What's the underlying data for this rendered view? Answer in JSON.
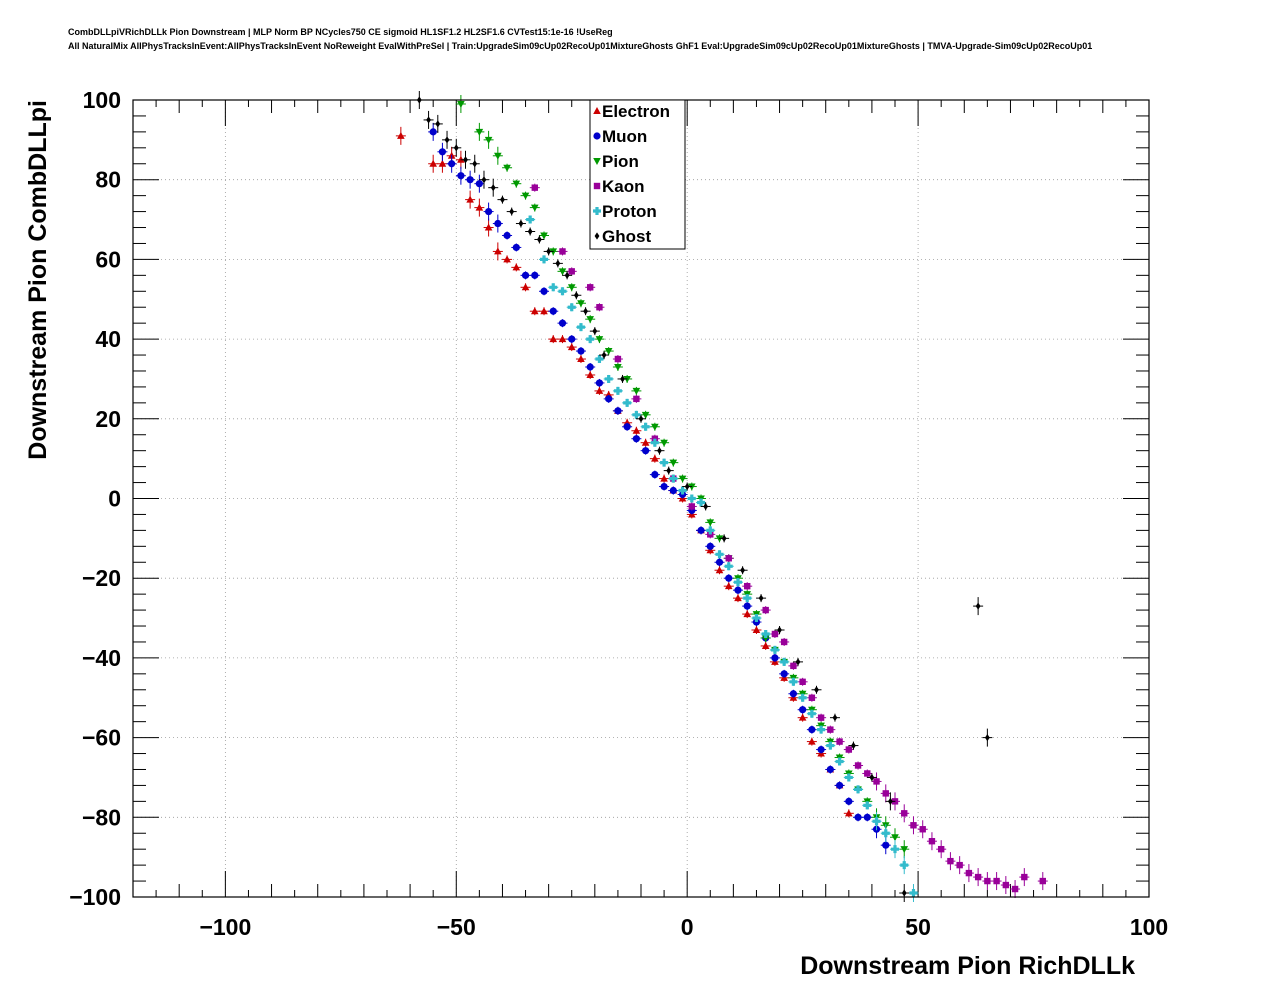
{
  "header": {
    "title_line1": "CombDLLpiVRichDLLk Pion Downstream | MLP Norm BP NCycles750 CE sigmoid HL1SF1.2 HL2SF1.6 CVTest15:1e-16 !UseReg",
    "title_line2": "All NaturalMix AllPhysTracksInEvent:AllPhysTracksInEvent NoReweight EvalWithPreSel | Train:UpgradeSim09cUp02RecoUp01MixtureGhosts GhF1 Eval:UpgradeSim09cUp02RecoUp01MixtureGhosts | TMVA-Upgrade-Sim09cUp02RecoUp01"
  },
  "chart_data": {
    "type": "scatter",
    "xlabel": "Downstream Pion RichDLLk",
    "ylabel": "Downstream Pion CombDLLpi",
    "xlim": [
      -120,
      100
    ],
    "ylim": [
      -100,
      100
    ],
    "xticks": [
      -100,
      -50,
      0,
      50,
      100
    ],
    "yticks": [
      -100,
      -80,
      -60,
      -40,
      -20,
      0,
      20,
      40,
      60,
      80,
      100
    ],
    "xtick_labels": [
      "−100",
      "−50",
      "0",
      "50",
      "100"
    ],
    "ytick_labels": [
      "−100",
      "−80",
      "−60",
      "−40",
      "−20",
      "0",
      "20",
      "40",
      "60",
      "80",
      "100"
    ],
    "grid": true,
    "legend_position": "top-center",
    "series": [
      {
        "name": "Electron",
        "color": "#cc0000",
        "marker": "triangle-up",
        "x": [
          -62,
          -55,
          -53,
          -51,
          -49,
          -47,
          -45,
          -43,
          -41,
          -39,
          -37,
          -35,
          -33,
          -31,
          -29,
          -27,
          -25,
          -23,
          -21,
          -19,
          -17,
          -15,
          -13,
          -11,
          -9,
          -7,
          -5,
          -3,
          -1,
          1,
          3,
          5,
          7,
          9,
          11,
          13,
          15,
          17,
          19,
          21,
          23,
          25,
          27,
          29,
          31,
          33,
          35
        ],
        "y": [
          91,
          84,
          84,
          86,
          85,
          75,
          73,
          68,
          62,
          60,
          58,
          53,
          47,
          47,
          40,
          40,
          38,
          35,
          31,
          27,
          26,
          22,
          19,
          17,
          14,
          10,
          5,
          2,
          0,
          -4,
          -8,
          -13,
          -18,
          -22,
          -25,
          -29,
          -33,
          -37,
          -41,
          -45,
          -50,
          -55,
          -61,
          -64,
          -68,
          -72,
          -79
        ]
      },
      {
        "name": "Muon",
        "color": "#0000cc",
        "marker": "circle",
        "x": [
          -55,
          -53,
          -51,
          -49,
          -47,
          -45,
          -43,
          -41,
          -39,
          -37,
          -35,
          -33,
          -31,
          -29,
          -27,
          -25,
          -23,
          -21,
          -19,
          -17,
          -15,
          -13,
          -11,
          -9,
          -7,
          -5,
          -3,
          -1,
          1,
          3,
          5,
          7,
          9,
          11,
          13,
          15,
          17,
          19,
          21,
          23,
          25,
          27,
          29,
          31,
          33,
          35,
          37,
          39,
          41,
          43
        ],
        "y": [
          92,
          87,
          84,
          81,
          80,
          79,
          72,
          69,
          66,
          63,
          56,
          56,
          52,
          47,
          44,
          40,
          37,
          33,
          29,
          25,
          22,
          18,
          15,
          12,
          6,
          3,
          2,
          1,
          -3,
          -8,
          -12,
          -16,
          -20,
          -23,
          -27,
          -31,
          -35,
          -40,
          -44,
          -49,
          -53,
          -58,
          -63,
          -68,
          -72,
          -76,
          -80,
          -80,
          -83,
          -87
        ]
      },
      {
        "name": "Pion",
        "color": "#009900",
        "marker": "triangle-down",
        "x": [
          -49,
          -45,
          -43,
          -41,
          -39,
          -37,
          -35,
          -33,
          -31,
          -29,
          -27,
          -25,
          -23,
          -21,
          -19,
          -17,
          -15,
          -13,
          -11,
          -9,
          -7,
          -5,
          -3,
          -1,
          1,
          3,
          5,
          7,
          9,
          11,
          13,
          15,
          17,
          19,
          21,
          23,
          25,
          27,
          29,
          31,
          33,
          35,
          37,
          39,
          41,
          43,
          45,
          47
        ],
        "y": [
          99,
          92,
          90,
          86,
          83,
          79,
          76,
          73,
          66,
          62,
          57,
          53,
          49,
          45,
          40,
          37,
          33,
          30,
          27,
          21,
          18,
          14,
          9,
          5,
          3,
          0,
          -6,
          -10,
          -15,
          -20,
          -24,
          -29,
          -35,
          -38,
          -41,
          -45,
          -49,
          -53,
          -57,
          -61,
          -65,
          -69,
          -73,
          -76,
          -80,
          -82,
          -85,
          -88
        ]
      },
      {
        "name": "Kaon",
        "color": "#990099",
        "marker": "square",
        "x": [
          -33,
          -27,
          -25,
          -21,
          -19,
          -15,
          -11,
          -7,
          -3,
          1,
          5,
          9,
          13,
          17,
          19,
          21,
          23,
          25,
          27,
          29,
          31,
          33,
          35,
          37,
          39,
          41,
          43,
          45,
          47,
          49,
          51,
          53,
          55,
          57,
          59,
          61,
          63,
          65,
          67,
          69,
          71,
          73,
          77
        ],
        "y": [
          78,
          62,
          57,
          53,
          48,
          35,
          25,
          15,
          5,
          -2,
          -9,
          -15,
          -22,
          -28,
          -34,
          -36,
          -42,
          -46,
          -50,
          -55,
          -58,
          -61,
          -63,
          -67,
          -69,
          -71,
          -74,
          -76,
          -79,
          -82,
          -83,
          -86,
          -88,
          -91,
          -92,
          -94,
          -95,
          -96,
          -96,
          -97,
          -98,
          -95,
          -96
        ]
      },
      {
        "name": "Proton",
        "color": "#33bbcc",
        "marker": "cross",
        "x": [
          -34,
          -31,
          -29,
          -27,
          -25,
          -23,
          -21,
          -19,
          -17,
          -15,
          -13,
          -11,
          -9,
          -7,
          -5,
          -3,
          -1,
          1,
          3,
          5,
          7,
          9,
          11,
          13,
          15,
          17,
          19,
          21,
          23,
          25,
          27,
          29,
          31,
          33,
          35,
          37,
          39,
          41,
          43,
          45,
          47,
          49
        ],
        "y": [
          70,
          60,
          53,
          52,
          48,
          43,
          40,
          35,
          30,
          27,
          24,
          21,
          18,
          14,
          9,
          5,
          2,
          0,
          -1,
          -8,
          -14,
          -17,
          -21,
          -25,
          -30,
          -34,
          -38,
          -41,
          -46,
          -50,
          -54,
          -58,
          -62,
          -66,
          -70,
          -73,
          -77,
          -81,
          -84,
          -88,
          -92,
          -99
        ]
      },
      {
        "name": "Ghost",
        "color": "#000000",
        "marker": "diamond",
        "x": [
          -58,
          -56,
          -54,
          -52,
          -50,
          -48,
          -46,
          -44,
          -42,
          -40,
          -38,
          -36,
          -34,
          -32,
          -30,
          -28,
          -26,
          -24,
          -22,
          -20,
          -18,
          -14,
          -10,
          -6,
          -4,
          0,
          4,
          8,
          12,
          16,
          20,
          24,
          28,
          32,
          36,
          40,
          44,
          47,
          63,
          65
        ],
        "y": [
          100,
          95,
          94,
          90,
          88,
          85,
          84,
          80,
          78,
          75,
          72,
          69,
          67,
          65,
          62,
          59,
          56,
          51,
          47,
          42,
          36,
          30,
          20,
          12,
          7,
          3,
          -2,
          -10,
          -18,
          -25,
          -33,
          -41,
          -48,
          -55,
          -62,
          -70,
          -76,
          -99,
          -27,
          -60
        ]
      }
    ]
  }
}
